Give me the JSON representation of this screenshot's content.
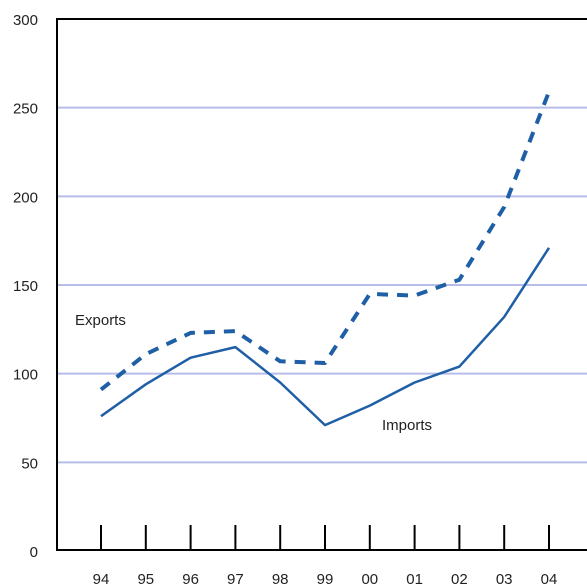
{
  "chart_data": {
    "type": "line",
    "x": [
      "94",
      "95",
      "96",
      "97",
      "98",
      "99",
      "00",
      "01",
      "02",
      "03",
      "04"
    ],
    "series": [
      {
        "name": "Exports",
        "style": "dashed",
        "color": "#1f5fa6",
        "values": [
          91,
          111,
          123,
          124,
          107,
          106,
          145,
          144,
          153,
          194,
          259
        ]
      },
      {
        "name": "Imports",
        "style": "solid",
        "color": "#1f5fa6",
        "values": [
          76,
          94,
          109,
          115,
          95,
          71,
          82,
          95,
          104,
          132,
          171
        ]
      }
    ],
    "ylim": [
      0,
      300
    ],
    "yticks": [
      "0",
      "50",
      "100",
      "150",
      "200",
      "250",
      "300"
    ],
    "grid": true,
    "colors": {
      "line": "#1f5fa6",
      "grid": "#b8bde8",
      "axis": "#000000"
    }
  }
}
